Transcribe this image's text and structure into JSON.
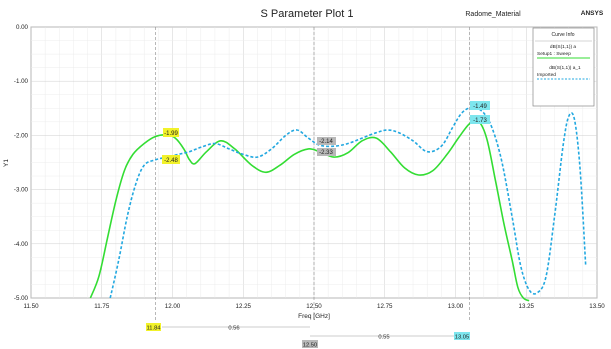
{
  "header": {
    "title": "S Parameter Plot 1",
    "project": "Radome_Material",
    "brand": "ANSYS"
  },
  "legend": {
    "heading": "Curve Info",
    "entries": [
      {
        "expr": "dB(S(1,1)) a",
        "source": "Setup1 : Sweep",
        "color": "#33dd33"
      },
      {
        "expr": "dB(S(1,1)) a_1",
        "source": "Imported",
        "color": "#22a8e0"
      }
    ]
  },
  "markers": {
    "green_peak": "-1.99",
    "green_left": "-2.48",
    "center_blue": "-2.14",
    "center_green": "-2.33",
    "right_blue": "-1.49",
    "right_green": "-1.73",
    "x_left": "11.84",
    "x_center": "12.50",
    "x_right": "13.05",
    "delta_left": "0.56",
    "delta_right": "0.55"
  },
  "colors": {
    "green_series": "#33dd33",
    "blue_series": "#22a8e0",
    "grid": "#d4d4d4",
    "marker_yellow": "#f2f22a",
    "marker_cyan": "#7de6ee",
    "marker_gray": "#b8b8b8"
  },
  "chart_data": {
    "type": "line",
    "title": "S Parameter Plot 1",
    "xlabel": "Freq [GHz]",
    "ylabel": "Y1",
    "xlim": [
      11.5,
      13.5
    ],
    "ylim": [
      -5.0,
      0.0
    ],
    "xticks": [
      "11.50",
      "11.75",
      "12.00",
      "12.25",
      "12.50",
      "12.75",
      "13.00",
      "13.25",
      "13.50"
    ],
    "yticks": [
      "0.00",
      "-1.00",
      "-2.00",
      "-3.00",
      "-4.00",
      "-5.00"
    ],
    "grid": true,
    "legend_position": "top-right",
    "series": [
      {
        "name": "dB(S(1,1)) a",
        "style": "solid",
        "x": [
          11.71,
          11.74,
          11.77,
          11.8,
          11.83,
          11.86,
          11.9,
          11.94,
          11.98,
          12.01,
          12.04,
          12.06,
          12.08,
          12.12,
          12.17,
          12.22,
          12.28,
          12.33,
          12.38,
          12.43,
          12.48,
          12.52,
          12.57,
          12.62,
          12.67,
          12.72,
          12.77,
          12.82,
          12.87,
          12.92,
          12.97,
          13.01,
          13.05,
          13.08,
          13.11,
          13.14,
          13.17,
          13.2,
          13.22,
          13.24,
          13.26
        ],
        "y": [
          -5.0,
          -4.6,
          -3.9,
          -3.2,
          -2.65,
          -2.35,
          -2.15,
          -2.02,
          -1.99,
          -2.05,
          -2.25,
          -2.45,
          -2.52,
          -2.3,
          -2.1,
          -2.25,
          -2.55,
          -2.68,
          -2.55,
          -2.35,
          -2.25,
          -2.3,
          -2.4,
          -2.32,
          -2.1,
          -2.05,
          -2.3,
          -2.6,
          -2.73,
          -2.65,
          -2.35,
          -2.05,
          -1.78,
          -1.73,
          -2.05,
          -2.8,
          -3.6,
          -4.3,
          -4.8,
          -5.0,
          -5.05
        ]
      },
      {
        "name": "dB(S(1,1)) a_1",
        "style": "dashed",
        "x": [
          11.78,
          11.81,
          11.84,
          11.87,
          11.9,
          11.94,
          11.98,
          12.02,
          12.06,
          12.1,
          12.15,
          12.2,
          12.25,
          12.3,
          12.35,
          12.4,
          12.44,
          12.48,
          12.52,
          12.57,
          12.62,
          12.67,
          12.72,
          12.76,
          12.8,
          12.85,
          12.9,
          12.95,
          12.99,
          13.02,
          13.05,
          13.08,
          13.12,
          13.16,
          13.2,
          13.23,
          13.26,
          13.29,
          13.32,
          13.35,
          13.38,
          13.4,
          13.42,
          13.44,
          13.46
        ],
        "y": [
          -5.0,
          -4.3,
          -3.5,
          -2.9,
          -2.55,
          -2.45,
          -2.4,
          -2.35,
          -2.3,
          -2.22,
          -2.15,
          -2.25,
          -2.35,
          -2.4,
          -2.25,
          -2.0,
          -1.9,
          -2.05,
          -2.18,
          -2.2,
          -2.15,
          -2.05,
          -1.95,
          -1.9,
          -1.95,
          -2.1,
          -2.3,
          -2.2,
          -1.85,
          -1.6,
          -1.49,
          -1.5,
          -1.75,
          -2.4,
          -3.5,
          -4.4,
          -4.85,
          -4.9,
          -4.6,
          -3.5,
          -2.2,
          -1.65,
          -1.7,
          -2.6,
          -4.4
        ]
      }
    ],
    "marker_lines_x": [
      11.94,
      12.5,
      13.05
    ]
  }
}
